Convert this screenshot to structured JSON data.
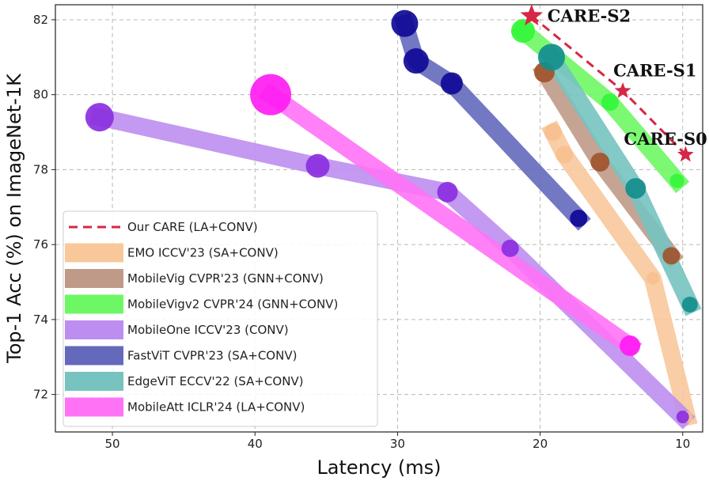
{
  "chart_data": {
    "type": "scatter",
    "xlabel": "Latency (ms)",
    "ylabel": "Top-1 Acc (%) on ImageNet-1K",
    "xlim": [
      54,
      8.6
    ],
    "ylim": [
      71,
      82.4
    ],
    "x_reversed": true,
    "x_ticks": [
      50,
      40,
      30,
      20,
      10
    ],
    "y_ticks": [
      72,
      74,
      76,
      78,
      80,
      82
    ],
    "grid": true,
    "legend_position": "lower-left",
    "series": [
      {
        "name": "Our CARE (LA+CONV)",
        "style": "dashed-star",
        "color": "#d62746",
        "points": [
          [
            20.6,
            82.1
          ],
          [
            14.2,
            80.1
          ],
          [
            9.8,
            78.4
          ]
        ],
        "labels": [
          "CARE-S2",
          "CARE-S1",
          "CARE-S0"
        ]
      },
      {
        "name": "EMO ICCV'23 (SA+CONV)",
        "color": "#f7c08f",
        "band_color": "#f8c89b",
        "points": [
          [
            19.1,
            79.0
          ],
          [
            18.3,
            78.4
          ],
          [
            12.1,
            75.1
          ],
          [
            9.7,
            71.4
          ]
        ],
        "sizes": [
          11,
          11,
          8,
          7
        ]
      },
      {
        "name": "MobileVig CVPR'23 (GNN+CONV)",
        "color": "#a0552c",
        "band_color": "#c09a88",
        "points": [
          [
            19.7,
            80.6
          ],
          [
            15.8,
            78.2
          ],
          [
            10.8,
            75.7
          ]
        ],
        "sizes": [
          13,
          12,
          11
        ]
      },
      {
        "name": "MobileVigv2 CVPR'24 (GNN+CONV)",
        "color": "#33f53a",
        "band_color": "#6ef764",
        "points": [
          [
            21.2,
            81.7
          ],
          [
            15.1,
            79.8
          ],
          [
            10.4,
            77.7
          ]
        ],
        "sizes": [
          15,
          11,
          9
        ]
      },
      {
        "name": "MobileOne ICCV'23 (CONV)",
        "color": "#8b2fe0",
        "band_color": "#bd8ef0",
        "points": [
          [
            50.9,
            79.4
          ],
          [
            35.6,
            78.1
          ],
          [
            26.5,
            77.4
          ],
          [
            22.1,
            75.9
          ],
          [
            10.0,
            71.4
          ]
        ],
        "sizes": [
          18,
          15,
          13,
          11,
          8
        ]
      },
      {
        "name": "FastViT CVPR'23 (SA+CONV)",
        "color": "#0f0a96",
        "band_color": "#6469bc",
        "points": [
          [
            29.5,
            81.9
          ],
          [
            28.7,
            80.9
          ],
          [
            26.2,
            80.3
          ],
          [
            17.3,
            76.7
          ]
        ],
        "sizes": [
          17,
          16,
          14,
          11
        ]
      },
      {
        "name": "EdgeViT ECCV'22 (SA+CONV)",
        "color": "#138e8c",
        "band_color": "#76c3c0",
        "points": [
          [
            19.2,
            81.0
          ],
          [
            13.3,
            77.5
          ],
          [
            9.5,
            74.4
          ]
        ],
        "sizes": [
          17,
          13,
          10
        ]
      },
      {
        "name": "MobileAtt ICLR'24 (LA+CONV)",
        "color": "#ff1cf2",
        "band_color": "#ff72f6",
        "points": [
          [
            38.9,
            80.0
          ],
          [
            13.7,
            73.3
          ]
        ],
        "sizes": [
          26,
          13
        ]
      }
    ]
  }
}
